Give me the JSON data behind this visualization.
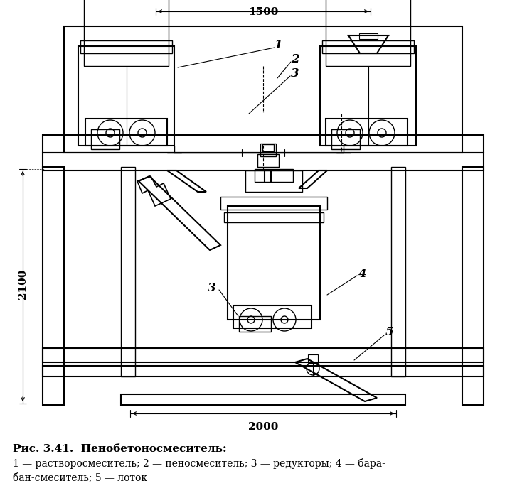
{
  "title_bold": "Рис. 3.41.  Пенобетоносмеситель:",
  "caption_line2": "1 — растворосмеситель; 2 — пеносмеситель; 3 — редукторы; 4 — бара-",
  "caption_line3": "бан-смеситель; 5 — лоток",
  "dim_top": "1500",
  "dim_bottom": "2000",
  "dim_left": "2100",
  "bg_color": "#ffffff",
  "line_color": "#000000",
  "label_1": "1",
  "label_2": "2",
  "label_3a": "3",
  "label_3b": "3",
  "label_4": "4",
  "label_5": "5"
}
